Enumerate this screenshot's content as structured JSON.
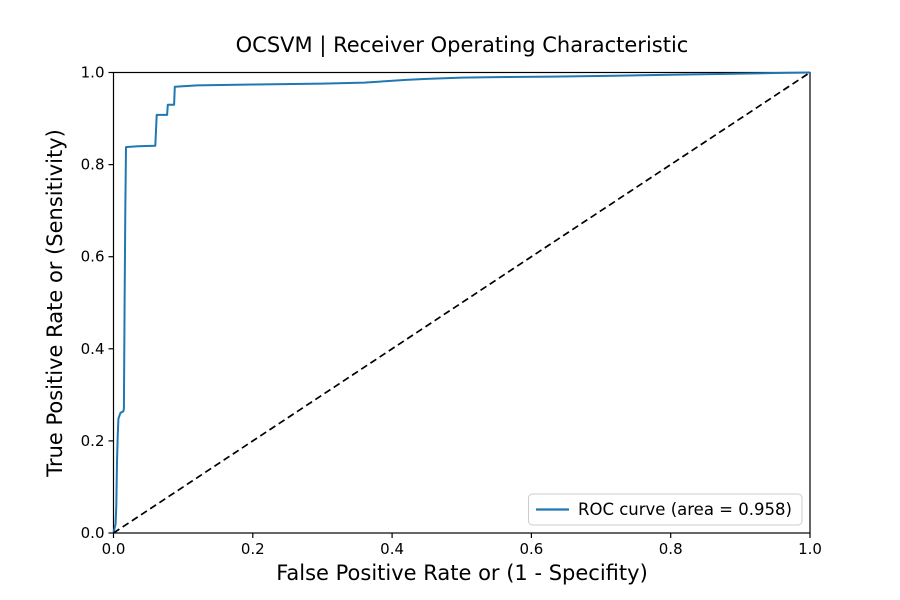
{
  "figure": {
    "background": "#ffffff",
    "text_color": "#000000"
  },
  "chart_data": {
    "type": "line",
    "title": "OCSVM | Receiver Operating Characteristic",
    "xlabel": "False Positive Rate or (1 - Specifity)",
    "ylabel": "True Positive Rate or (Sensitivity)",
    "xlim": [
      0.0,
      1.0
    ],
    "ylim": [
      0.0,
      1.0
    ],
    "x_ticks": [
      "0.0",
      "0.2",
      "0.4",
      "0.6",
      "0.8",
      "1.0"
    ],
    "y_ticks": [
      "0.0",
      "0.2",
      "0.4",
      "0.6",
      "0.8",
      "1.0"
    ],
    "grid": false,
    "auc": 0.958,
    "legend": {
      "position": "lower-right",
      "label": "ROC curve (area = 0.958)",
      "swatch_color": "#1f77b4",
      "border_color": "#cccccc",
      "background": "#ffffff"
    },
    "series": [
      {
        "name": "roc-curve",
        "color": "#1f77b4",
        "line_style": "solid",
        "line_width": 2,
        "points": [
          [
            0.0,
            0.0
          ],
          [
            0.003,
            0.02
          ],
          [
            0.004,
            0.06
          ],
          [
            0.005,
            0.155
          ],
          [
            0.006,
            0.21
          ],
          [
            0.007,
            0.248
          ],
          [
            0.009,
            0.257
          ],
          [
            0.01,
            0.261
          ],
          [
            0.014,
            0.264
          ],
          [
            0.015,
            0.27
          ],
          [
            0.016,
            0.5
          ],
          [
            0.017,
            0.7
          ],
          [
            0.018,
            0.838
          ],
          [
            0.035,
            0.84
          ],
          [
            0.06,
            0.841
          ],
          [
            0.062,
            0.908
          ],
          [
            0.077,
            0.908
          ],
          [
            0.078,
            0.93
          ],
          [
            0.087,
            0.93
          ],
          [
            0.088,
            0.969
          ],
          [
            0.12,
            0.972
          ],
          [
            0.2,
            0.974
          ],
          [
            0.3,
            0.976
          ],
          [
            0.36,
            0.978
          ],
          [
            0.42,
            0.984
          ],
          [
            0.45,
            0.986
          ],
          [
            0.5,
            0.989
          ],
          [
            0.55,
            0.99
          ],
          [
            0.63,
            0.991
          ],
          [
            0.72,
            0.993
          ],
          [
            0.8,
            0.995
          ],
          [
            0.88,
            0.997
          ],
          [
            0.95,
            0.999
          ],
          [
            1.0,
            1.0
          ]
        ]
      },
      {
        "name": "chance-diagonal",
        "color": "#000000",
        "line_style": "dashed",
        "line_width": 1.7,
        "points": [
          [
            0.0,
            0.0
          ],
          [
            1.0,
            1.0
          ]
        ]
      }
    ]
  }
}
